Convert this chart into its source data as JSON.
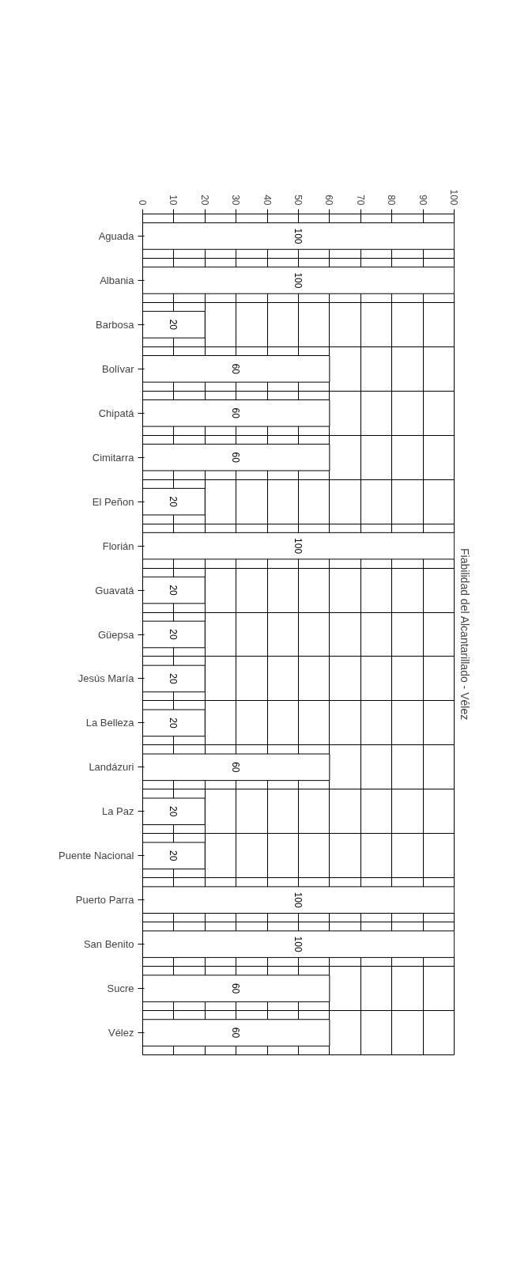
{
  "chart_data": {
    "type": "bar",
    "orientation": "horizontal",
    "title": "Fiabilidad del Alcantarillado - Vélez",
    "categories": [
      "Aguada",
      "Albania",
      "Barbosa",
      "Bolívar",
      "Chipatá",
      "Cimitarra",
      "El Peñon",
      "Florián",
      "Guavatá",
      "Güepsa",
      "Jesús María",
      "La Belleza",
      "Landázuri",
      "La Paz",
      "Puente Nacional",
      "Puerto Parra",
      "San Benito",
      "Sucre",
      "Vélez"
    ],
    "values": [
      100,
      100,
      20,
      60,
      60,
      60,
      20,
      100,
      20,
      20,
      20,
      20,
      60,
      20,
      20,
      100,
      100,
      60,
      60
    ],
    "color": "#ffffff",
    "xlim": [
      0,
      100
    ],
    "xticks": [
      0,
      10,
      20,
      30,
      40,
      50,
      60,
      70,
      80,
      90,
      100
    ],
    "grid": true,
    "data_labels": true
  }
}
